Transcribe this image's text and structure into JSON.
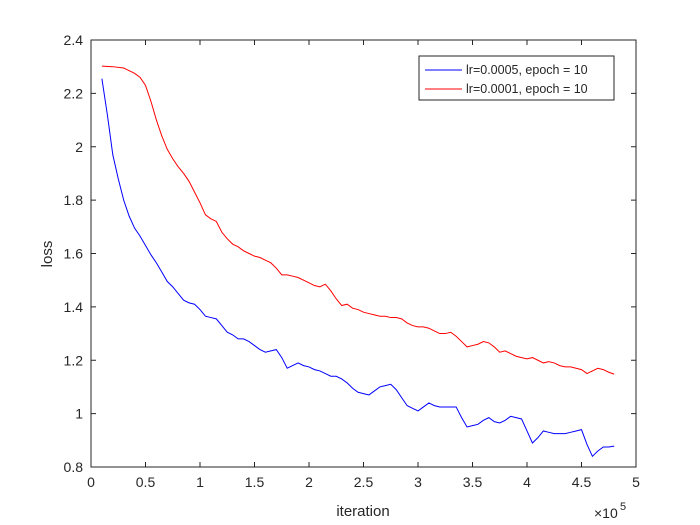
{
  "chart_data": {
    "type": "line",
    "title": "",
    "xlabel": "iteration",
    "ylabel": "loss",
    "x_exponent_label": "×10",
    "x_exponent_power": "5",
    "xlim": [
      0,
      5
    ],
    "ylim": [
      0.8,
      2.4
    ],
    "x_ticks": [
      "0",
      "0.5",
      "1",
      "1.5",
      "2",
      "2.5",
      "3",
      "3.5",
      "4",
      "4.5",
      "5"
    ],
    "y_ticks": [
      "0.8",
      "1",
      "1.2",
      "1.4",
      "1.6",
      "1.8",
      "2",
      "2.2",
      "2.4"
    ],
    "grid": false,
    "legend_position": "top-right",
    "colors": {
      "axes": "#262626",
      "background": "#ffffff"
    },
    "series": [
      {
        "name": "lr=0.0005, epoch = 10",
        "color": "#0000ff",
        "x": [
          0.1,
          0.15,
          0.2,
          0.25,
          0.3,
          0.35,
          0.4,
          0.45,
          0.5,
          0.55,
          0.6,
          0.65,
          0.7,
          0.75,
          0.8,
          0.85,
          0.9,
          0.95,
          1.0,
          1.05,
          1.1,
          1.15,
          1.2,
          1.25,
          1.3,
          1.35,
          1.4,
          1.45,
          1.5,
          1.55,
          1.6,
          1.65,
          1.7,
          1.75,
          1.8,
          1.85,
          1.9,
          1.95,
          2.0,
          2.05,
          2.1,
          2.15,
          2.2,
          2.25,
          2.3,
          2.35,
          2.4,
          2.45,
          2.5,
          2.55,
          2.6,
          2.65,
          2.7,
          2.75,
          2.8,
          2.85,
          2.9,
          2.95,
          3.0,
          3.05,
          3.1,
          3.15,
          3.2,
          3.25,
          3.3,
          3.35,
          3.4,
          3.45,
          3.5,
          3.55,
          3.6,
          3.65,
          3.7,
          3.75,
          3.8,
          3.85,
          3.9,
          3.95,
          4.0,
          4.05,
          4.1,
          4.15,
          4.2,
          4.25,
          4.3,
          4.35,
          4.4,
          4.45,
          4.5,
          4.55,
          4.6,
          4.65,
          4.7,
          4.75,
          4.8
        ],
        "values": [
          2.255,
          2.12,
          1.97,
          1.88,
          1.8,
          1.74,
          1.695,
          1.665,
          1.63,
          1.595,
          1.565,
          1.53,
          1.495,
          1.475,
          1.45,
          1.425,
          1.415,
          1.41,
          1.39,
          1.365,
          1.36,
          1.355,
          1.33,
          1.305,
          1.295,
          1.28,
          1.28,
          1.27,
          1.255,
          1.24,
          1.23,
          1.235,
          1.24,
          1.21,
          1.17,
          1.18,
          1.19,
          1.18,
          1.175,
          1.165,
          1.16,
          1.15,
          1.14,
          1.14,
          1.13,
          1.115,
          1.095,
          1.08,
          1.075,
          1.07,
          1.085,
          1.1,
          1.105,
          1.11,
          1.09,
          1.06,
          1.03,
          1.02,
          1.01,
          1.025,
          1.04,
          1.03,
          1.025,
          1.025,
          1.025,
          1.025,
          0.985,
          0.95,
          0.955,
          0.96,
          0.975,
          0.985,
          0.97,
          0.965,
          0.975,
          0.99,
          0.985,
          0.98,
          0.935,
          0.89,
          0.91,
          0.935,
          0.93,
          0.925,
          0.925,
          0.925,
          0.93,
          0.935,
          0.94,
          0.885,
          0.84,
          0.86,
          0.875,
          0.875,
          0.878
        ]
      },
      {
        "name": "lr=0.0001, epoch = 10",
        "color": "#ff0000",
        "x": [
          0.1,
          0.2,
          0.3,
          0.35,
          0.4,
          0.45,
          0.5,
          0.55,
          0.6,
          0.65,
          0.7,
          0.75,
          0.8,
          0.85,
          0.9,
          0.95,
          1.0,
          1.05,
          1.1,
          1.15,
          1.2,
          1.25,
          1.3,
          1.35,
          1.4,
          1.45,
          1.5,
          1.55,
          1.6,
          1.65,
          1.7,
          1.75,
          1.8,
          1.85,
          1.9,
          1.95,
          2.0,
          2.05,
          2.1,
          2.15,
          2.2,
          2.25,
          2.3,
          2.35,
          2.4,
          2.45,
          2.5,
          2.55,
          2.6,
          2.65,
          2.7,
          2.75,
          2.8,
          2.85,
          2.9,
          2.95,
          3.0,
          3.05,
          3.1,
          3.15,
          3.2,
          3.25,
          3.3,
          3.35,
          3.4,
          3.45,
          3.5,
          3.55,
          3.6,
          3.65,
          3.7,
          3.75,
          3.8,
          3.85,
          3.9,
          3.95,
          4.0,
          4.05,
          4.1,
          4.15,
          4.2,
          4.25,
          4.3,
          4.35,
          4.4,
          4.45,
          4.5,
          4.55,
          4.6,
          4.65,
          4.7,
          4.75,
          4.8
        ],
        "values": [
          2.302,
          2.3,
          2.295,
          2.285,
          2.275,
          2.26,
          2.23,
          2.17,
          2.1,
          2.04,
          1.99,
          1.955,
          1.925,
          1.9,
          1.87,
          1.83,
          1.79,
          1.745,
          1.73,
          1.72,
          1.68,
          1.655,
          1.635,
          1.625,
          1.61,
          1.6,
          1.59,
          1.585,
          1.575,
          1.565,
          1.545,
          1.52,
          1.52,
          1.515,
          1.51,
          1.5,
          1.49,
          1.48,
          1.475,
          1.485,
          1.46,
          1.43,
          1.405,
          1.41,
          1.395,
          1.39,
          1.38,
          1.375,
          1.37,
          1.365,
          1.365,
          1.36,
          1.36,
          1.355,
          1.34,
          1.33,
          1.325,
          1.325,
          1.32,
          1.31,
          1.3,
          1.3,
          1.305,
          1.29,
          1.27,
          1.25,
          1.255,
          1.26,
          1.27,
          1.265,
          1.25,
          1.23,
          1.235,
          1.225,
          1.215,
          1.21,
          1.205,
          1.21,
          1.2,
          1.19,
          1.195,
          1.19,
          1.18,
          1.175,
          1.175,
          1.17,
          1.165,
          1.15,
          1.16,
          1.17,
          1.165,
          1.155,
          1.148
        ]
      }
    ]
  }
}
